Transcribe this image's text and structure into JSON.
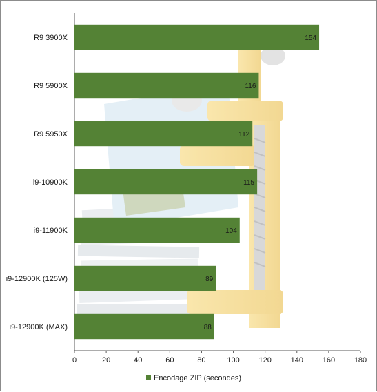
{
  "chart_data": {
    "type": "bar",
    "orientation": "horizontal",
    "categories": [
      "R9 3900X",
      "R9 5900X",
      "R9 5950X",
      "i9-10900K",
      "i9-11900K",
      "i9-12900K (125W)",
      "i9-12900K (MAX)"
    ],
    "series": [
      {
        "name": "Encodage ZIP (secondes)",
        "values": [
          154,
          116,
          112,
          115,
          104,
          89,
          88
        ],
        "color": "#548235"
      }
    ],
    "xlim": [
      0,
      180
    ],
    "xticks": [
      0,
      20,
      40,
      60,
      80,
      100,
      120,
      140,
      160,
      180
    ],
    "grid": false,
    "legend_position": "bottom",
    "data_labels": true,
    "background_illustration": "clamp-compressing-stack-of-papers"
  }
}
